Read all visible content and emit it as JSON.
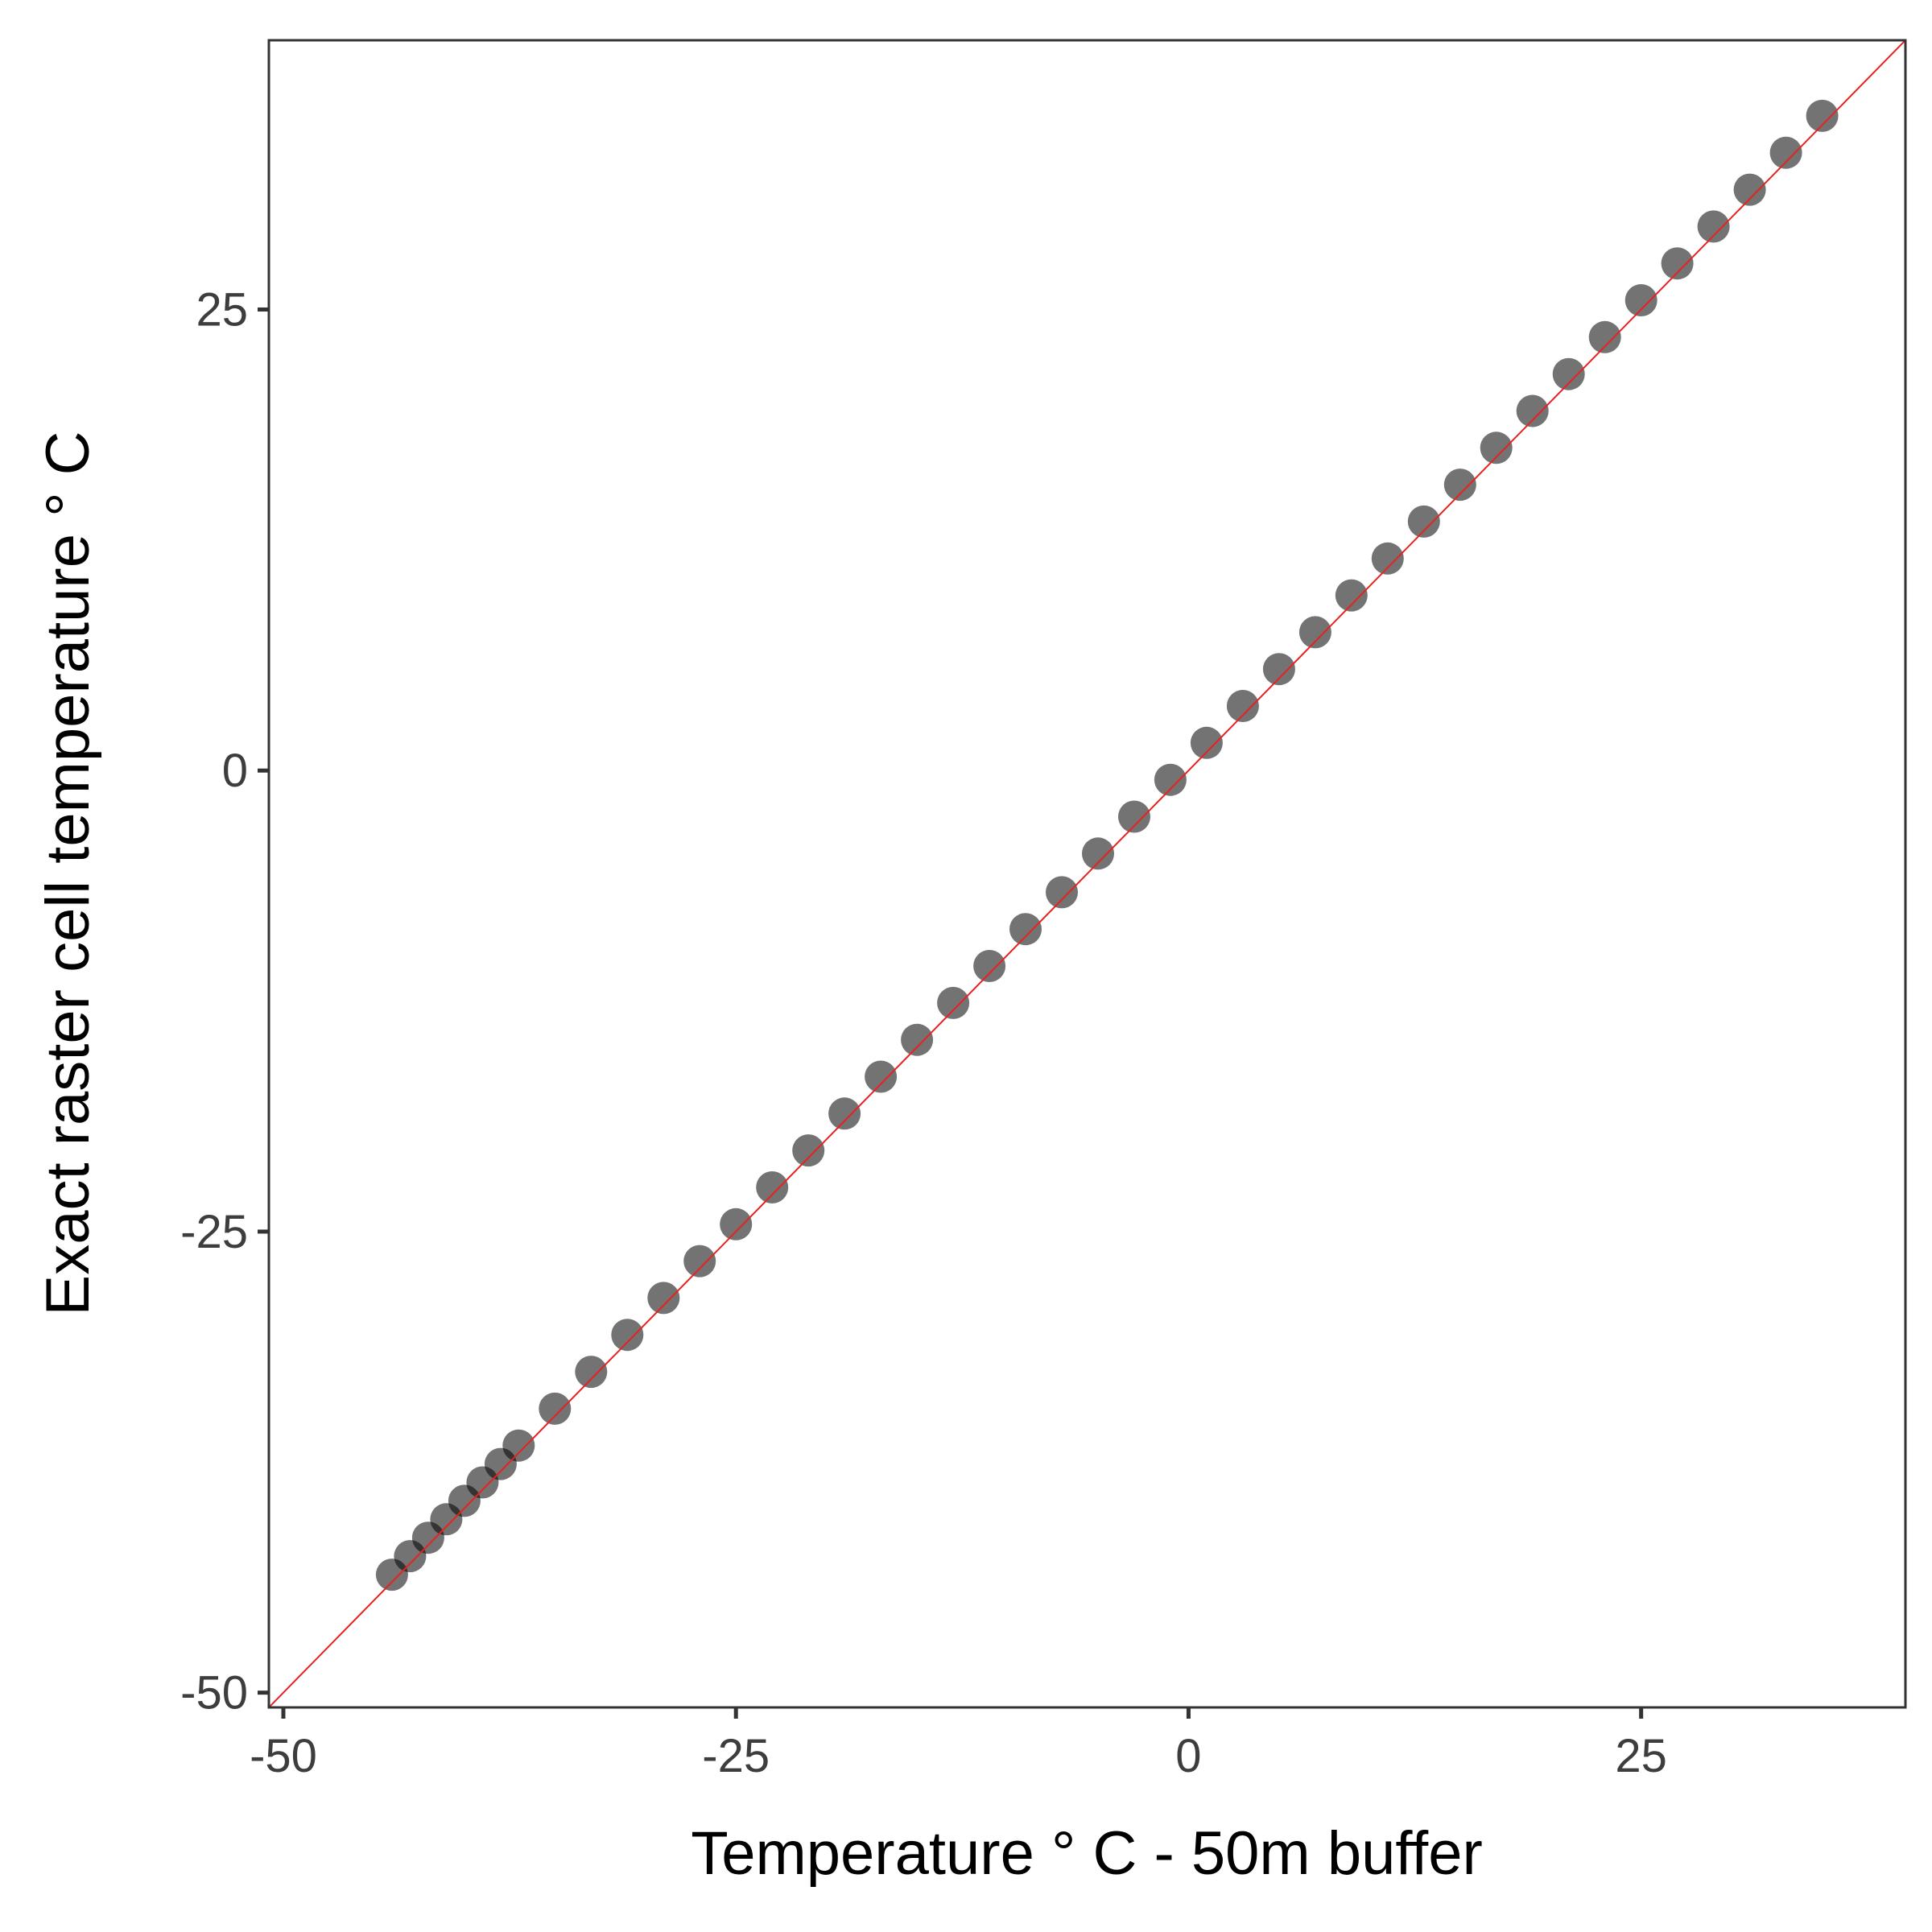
{
  "chart_data": {
    "type": "scatter",
    "title": "",
    "xlabel": "Temperature ° C - 50m buffer",
    "ylabel": "Exact raster cell temperature ° C",
    "xlim": [
      -50.8,
      39.6
    ],
    "ylim": [
      -50.8,
      39.6
    ],
    "x_ticks": [
      -50,
      -25,
      0,
      25
    ],
    "y_ticks": [
      -50,
      -25,
      0,
      25
    ],
    "x_tick_labels": [
      "-50",
      "-25",
      "0",
      "25"
    ],
    "y_tick_labels": [
      "-50",
      "-25",
      "0",
      "25"
    ],
    "grid": false,
    "legend": "none",
    "reference_line": {
      "slope": 1,
      "intercept": 0,
      "color": "#e8201e"
    },
    "point_color": "#000000",
    "series": [
      {
        "x": [
          -44,
          -43,
          -42,
          -41,
          -40,
          -39,
          -38,
          -37,
          -35,
          -33,
          -31,
          -29,
          -27,
          -25,
          -23,
          -21,
          -19,
          -17,
          -15,
          -13,
          -11,
          -9,
          -7,
          -5,
          -3,
          -1,
          1,
          3,
          5,
          7,
          9,
          11,
          13,
          15,
          17,
          19,
          21,
          23,
          25,
          27,
          29,
          31,
          33,
          35
        ],
        "y": [
          -43.6,
          -42.6,
          -41.6,
          -40.6,
          -39.6,
          -38.6,
          -37.6,
          -36.6,
          -34.6,
          -32.6,
          -30.6,
          -28.6,
          -26.6,
          -24.6,
          -22.6,
          -20.6,
          -18.6,
          -16.6,
          -14.6,
          -12.6,
          -10.6,
          -8.6,
          -6.6,
          -4.5,
          -2.5,
          -0.5,
          1.5,
          3.5,
          5.5,
          7.5,
          9.5,
          11.5,
          13.5,
          15.5,
          17.5,
          19.5,
          21.5,
          23.5,
          25.5,
          27.5,
          29.5,
          31.5,
          33.5,
          35.5
        ]
      }
    ]
  }
}
